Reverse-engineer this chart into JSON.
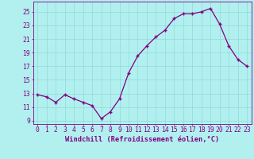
{
  "x": [
    0,
    1,
    2,
    3,
    4,
    5,
    6,
    7,
    8,
    9,
    10,
    11,
    12,
    13,
    14,
    15,
    16,
    17,
    18,
    19,
    20,
    21,
    22,
    23
  ],
  "y": [
    12.8,
    12.5,
    11.7,
    12.8,
    12.2,
    11.7,
    11.2,
    9.3,
    10.3,
    12.2,
    16.0,
    18.5,
    20.0,
    21.3,
    22.3,
    24.0,
    24.7,
    24.7,
    25.0,
    25.5,
    23.2,
    20.0,
    18.0,
    17.0
  ],
  "line_color": "#800080",
  "marker_color": "#800080",
  "bg_color": "#b2f0f0",
  "grid_color": "#90d8d8",
  "axis_color": "#800080",
  "tick_color": "#800080",
  "xlabel": "Windchill (Refroidissement éolien,°C)",
  "xlim": [
    -0.5,
    23.5
  ],
  "ylim": [
    8.5,
    26.5
  ],
  "yticks": [
    9,
    11,
    13,
    15,
    17,
    19,
    21,
    23,
    25
  ],
  "xtick_labels": [
    "0",
    "1",
    "2",
    "3",
    "4",
    "5",
    "6",
    "7",
    "8",
    "9",
    "10",
    "11",
    "12",
    "13",
    "14",
    "15",
    "16",
    "17",
    "18",
    "19",
    "20",
    "21",
    "22",
    "23"
  ],
  "font_size": 5.8,
  "xlabel_font_size": 6.2
}
